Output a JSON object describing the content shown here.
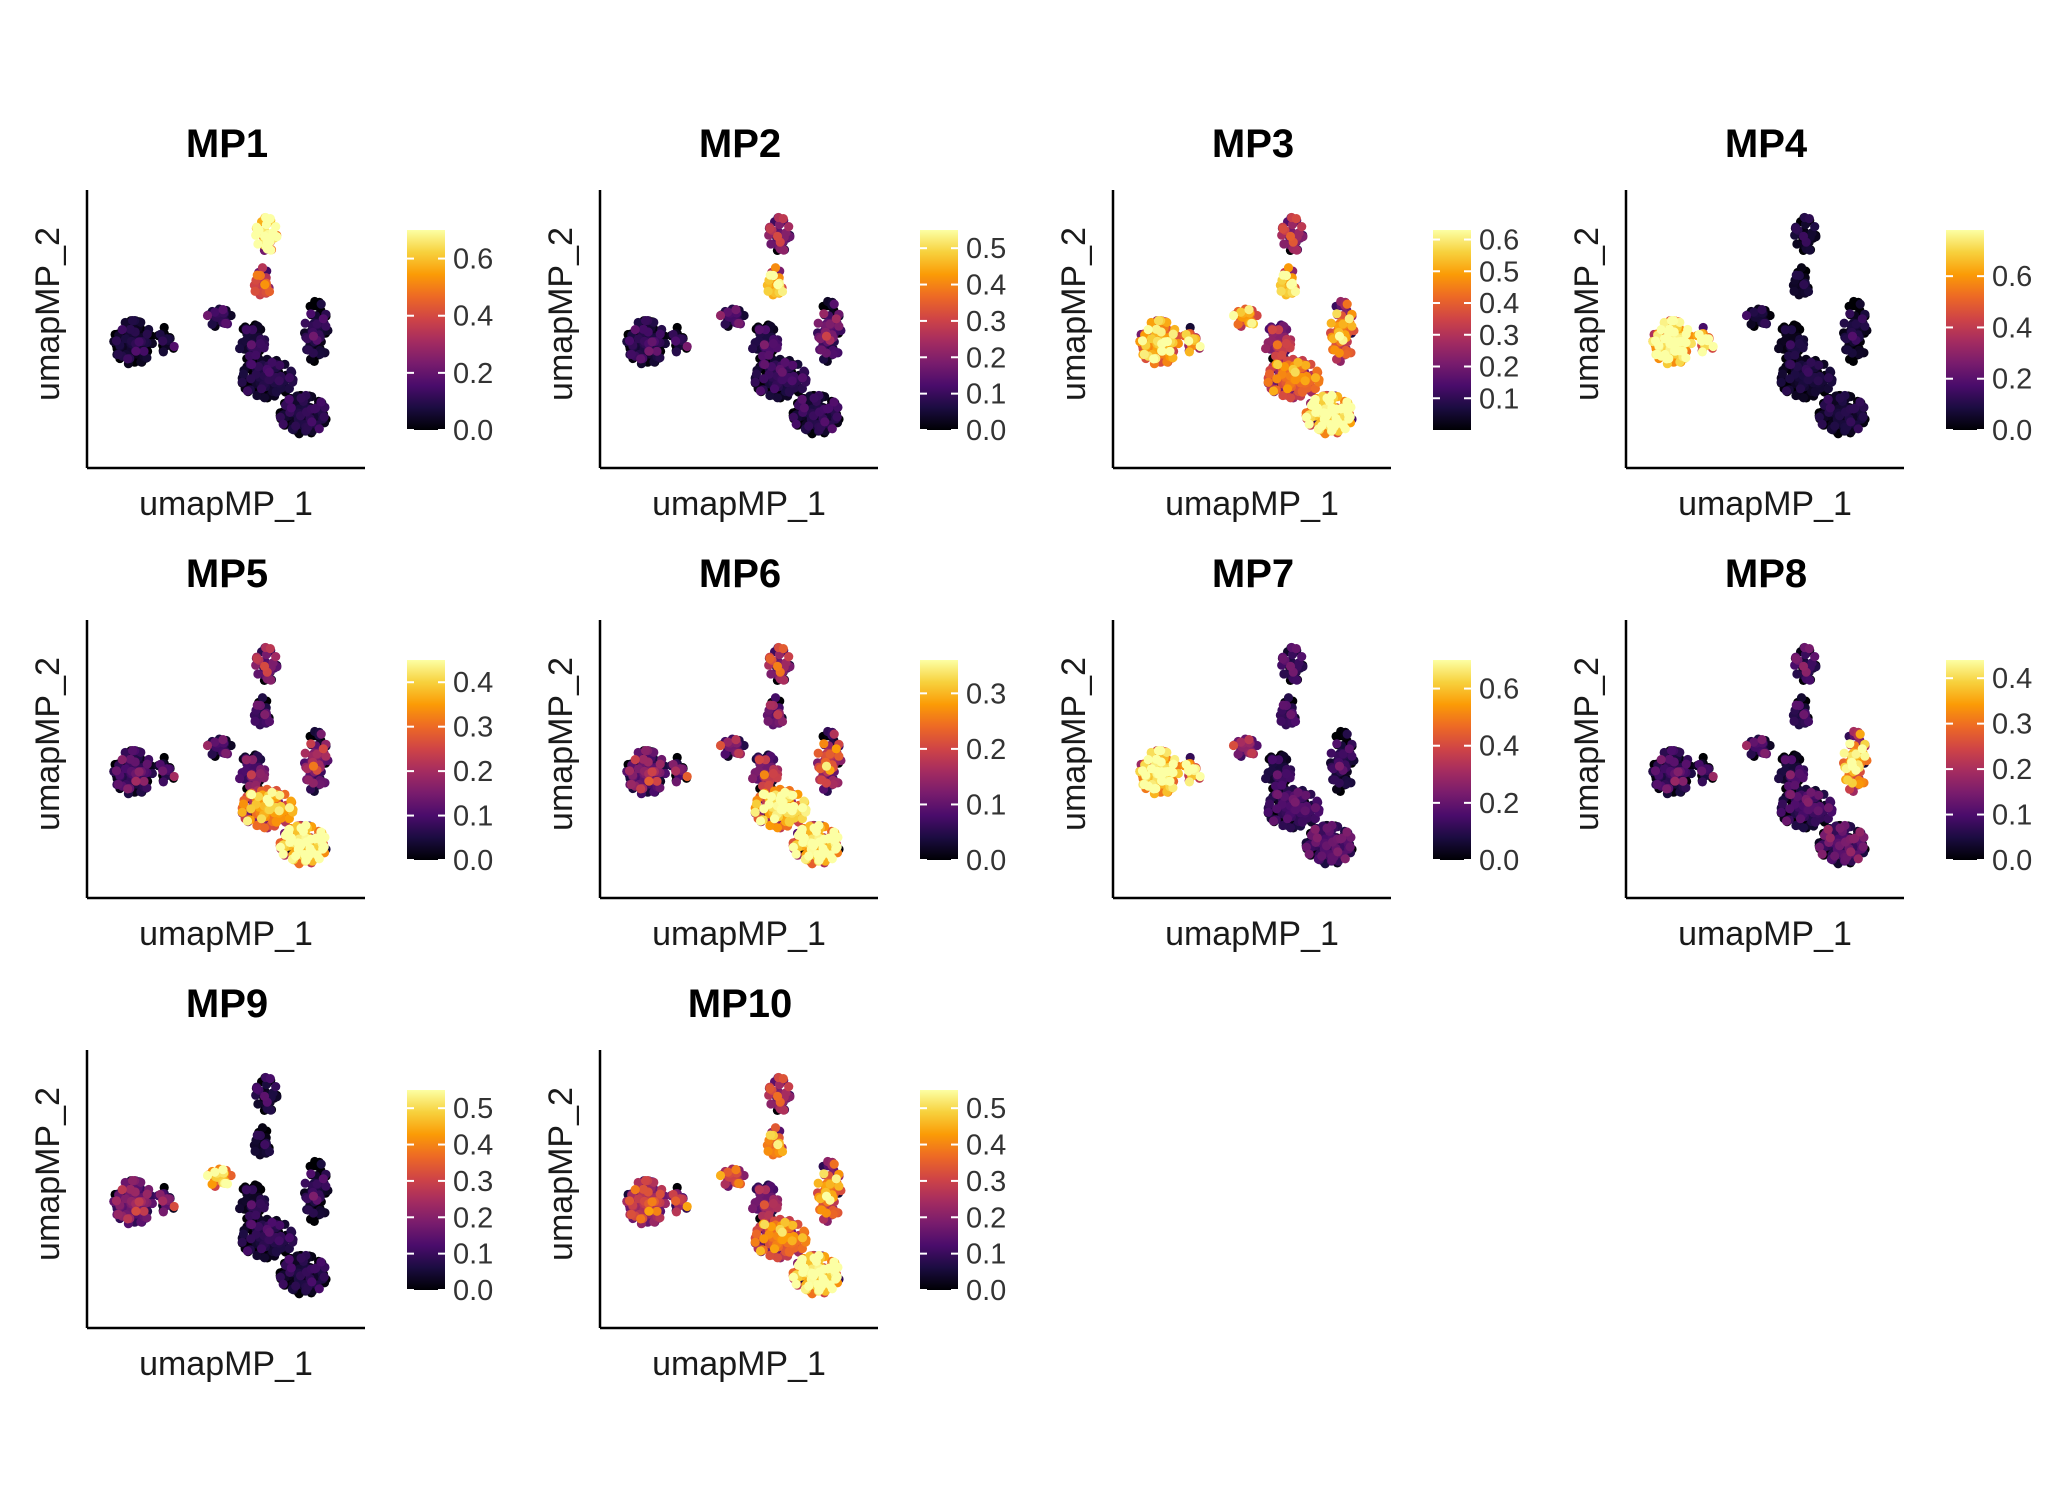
{
  "chart_data": {
    "type": "scatter",
    "subtype": "umap-feature-plot-grid",
    "colormap": "inferno",
    "colormap_stops": [
      "#000004",
      "#1b0c41",
      "#4a0c6b",
      "#781c6d",
      "#a52c60",
      "#cf4446",
      "#ed6925",
      "#fb9b06",
      "#f7d13d",
      "#fcffa4"
    ],
    "xlabel": "umapMP_1",
    "ylabel": "umapMP_2",
    "panels": [
      {
        "title": "MP1",
        "colorbar_ticks": [
          "0.0",
          "0.2",
          "0.4",
          "0.6"
        ],
        "colorbar_values": [
          0.0,
          0.2,
          0.4,
          0.6
        ],
        "colorbar_max": 0.7,
        "cluster_levels": {
          "far_left": 0.02,
          "top_tip": 0.65,
          "upper_stem": 0.35,
          "arm_left": 0.08,
          "stem_mid": 0.05,
          "right_arm": 0.04,
          "body_upper": 0.03,
          "body_lower": 0.03
        }
      },
      {
        "title": "MP2",
        "colorbar_ticks": [
          "0.0",
          "0.1",
          "0.2",
          "0.3",
          "0.4",
          "0.5"
        ],
        "colorbar_values": [
          0.0,
          0.1,
          0.2,
          0.3,
          0.4,
          0.5
        ],
        "colorbar_max": 0.55,
        "cluster_levels": {
          "far_left": 0.03,
          "top_tip": 0.14,
          "upper_stem": 0.42,
          "arm_left": 0.08,
          "stem_mid": 0.05,
          "right_arm": 0.09,
          "body_upper": 0.03,
          "body_lower": 0.02
        }
      },
      {
        "title": "MP3",
        "colorbar_ticks": [
          "0.1",
          "0.2",
          "0.3",
          "0.4",
          "0.5",
          "0.6"
        ],
        "colorbar_values": [
          0.1,
          0.2,
          0.3,
          0.4,
          0.5,
          0.6
        ],
        "colorbar_max": 0.63,
        "cluster_levels": {
          "far_left": 0.42,
          "top_tip": 0.2,
          "upper_stem": 0.5,
          "arm_left": 0.42,
          "stem_mid": 0.22,
          "right_arm": 0.35,
          "body_upper": 0.32,
          "body_lower": 0.5
        }
      },
      {
        "title": "MP4",
        "colorbar_ticks": [
          "0.0",
          "0.2",
          "0.4",
          "0.6"
        ],
        "colorbar_values": [
          0.0,
          0.2,
          0.4,
          0.6
        ],
        "colorbar_max": 0.78,
        "cluster_levels": {
          "far_left": 0.65,
          "top_tip": 0.02,
          "upper_stem": 0.03,
          "arm_left": 0.04,
          "stem_mid": 0.02,
          "right_arm": 0.02,
          "body_upper": 0.02,
          "body_lower": 0.02
        }
      },
      {
        "title": "MP5",
        "colorbar_ticks": [
          "0.0",
          "0.1",
          "0.2",
          "0.3",
          "0.4"
        ],
        "colorbar_values": [
          0.0,
          0.1,
          0.2,
          0.3,
          0.4
        ],
        "colorbar_max": 0.45,
        "cluster_levels": {
          "far_left": 0.04,
          "top_tip": 0.1,
          "upper_stem": 0.06,
          "arm_left": 0.06,
          "stem_mid": 0.08,
          "right_arm": 0.1,
          "body_upper": 0.26,
          "body_lower": 0.34
        }
      },
      {
        "title": "MP6",
        "colorbar_ticks": [
          "0.0",
          "0.1",
          "0.2",
          "0.3"
        ],
        "colorbar_values": [
          0.0,
          0.1,
          0.2,
          0.3
        ],
        "colorbar_max": 0.36,
        "cluster_levels": {
          "far_left": 0.06,
          "top_tip": 0.1,
          "upper_stem": 0.08,
          "arm_left": 0.08,
          "stem_mid": 0.1,
          "right_arm": 0.12,
          "body_upper": 0.24,
          "body_lower": 0.26
        }
      },
      {
        "title": "MP7",
        "colorbar_ticks": [
          "0.0",
          "0.2",
          "0.4",
          "0.6"
        ],
        "colorbar_values": [
          0.0,
          0.2,
          0.4,
          0.6
        ],
        "colorbar_max": 0.7,
        "cluster_levels": {
          "far_left": 0.55,
          "top_tip": 0.08,
          "upper_stem": 0.1,
          "arm_left": 0.22,
          "stem_mid": 0.06,
          "right_arm": 0.05,
          "body_upper": 0.08,
          "body_lower": 0.1
        }
      },
      {
        "title": "MP8",
        "colorbar_ticks": [
          "0.0",
          "0.1",
          "0.2",
          "0.3",
          "0.4"
        ],
        "colorbar_values": [
          0.0,
          0.1,
          0.2,
          0.3,
          0.4
        ],
        "colorbar_max": 0.44,
        "cluster_levels": {
          "far_left": 0.03,
          "top_tip": 0.04,
          "upper_stem": 0.04,
          "arm_left": 0.06,
          "stem_mid": 0.03,
          "right_arm": 0.28,
          "body_upper": 0.03,
          "body_lower": 0.05
        }
      },
      {
        "title": "MP9",
        "colorbar_ticks": [
          "0.0",
          "0.1",
          "0.2",
          "0.3",
          "0.4",
          "0.5"
        ],
        "colorbar_values": [
          0.0,
          0.1,
          0.2,
          0.3,
          0.4,
          0.5
        ],
        "colorbar_max": 0.55,
        "cluster_levels": {
          "far_left": 0.12,
          "top_tip": 0.02,
          "upper_stem": 0.02,
          "arm_left": 0.42,
          "stem_mid": 0.02,
          "right_arm": 0.02,
          "body_upper": 0.02,
          "body_lower": 0.01
        }
      },
      {
        "title": "MP10",
        "colorbar_ticks": [
          "0.0",
          "0.1",
          "0.2",
          "0.3",
          "0.4",
          "0.5"
        ],
        "colorbar_values": [
          0.0,
          0.1,
          0.2,
          0.3,
          0.4,
          0.5
        ],
        "colorbar_max": 0.55,
        "cluster_levels": {
          "far_left": 0.2,
          "top_tip": 0.18,
          "upper_stem": 0.35,
          "arm_left": 0.25,
          "stem_mid": 0.15,
          "right_arm": 0.3,
          "body_upper": 0.28,
          "body_lower": 0.42
        }
      }
    ]
  }
}
